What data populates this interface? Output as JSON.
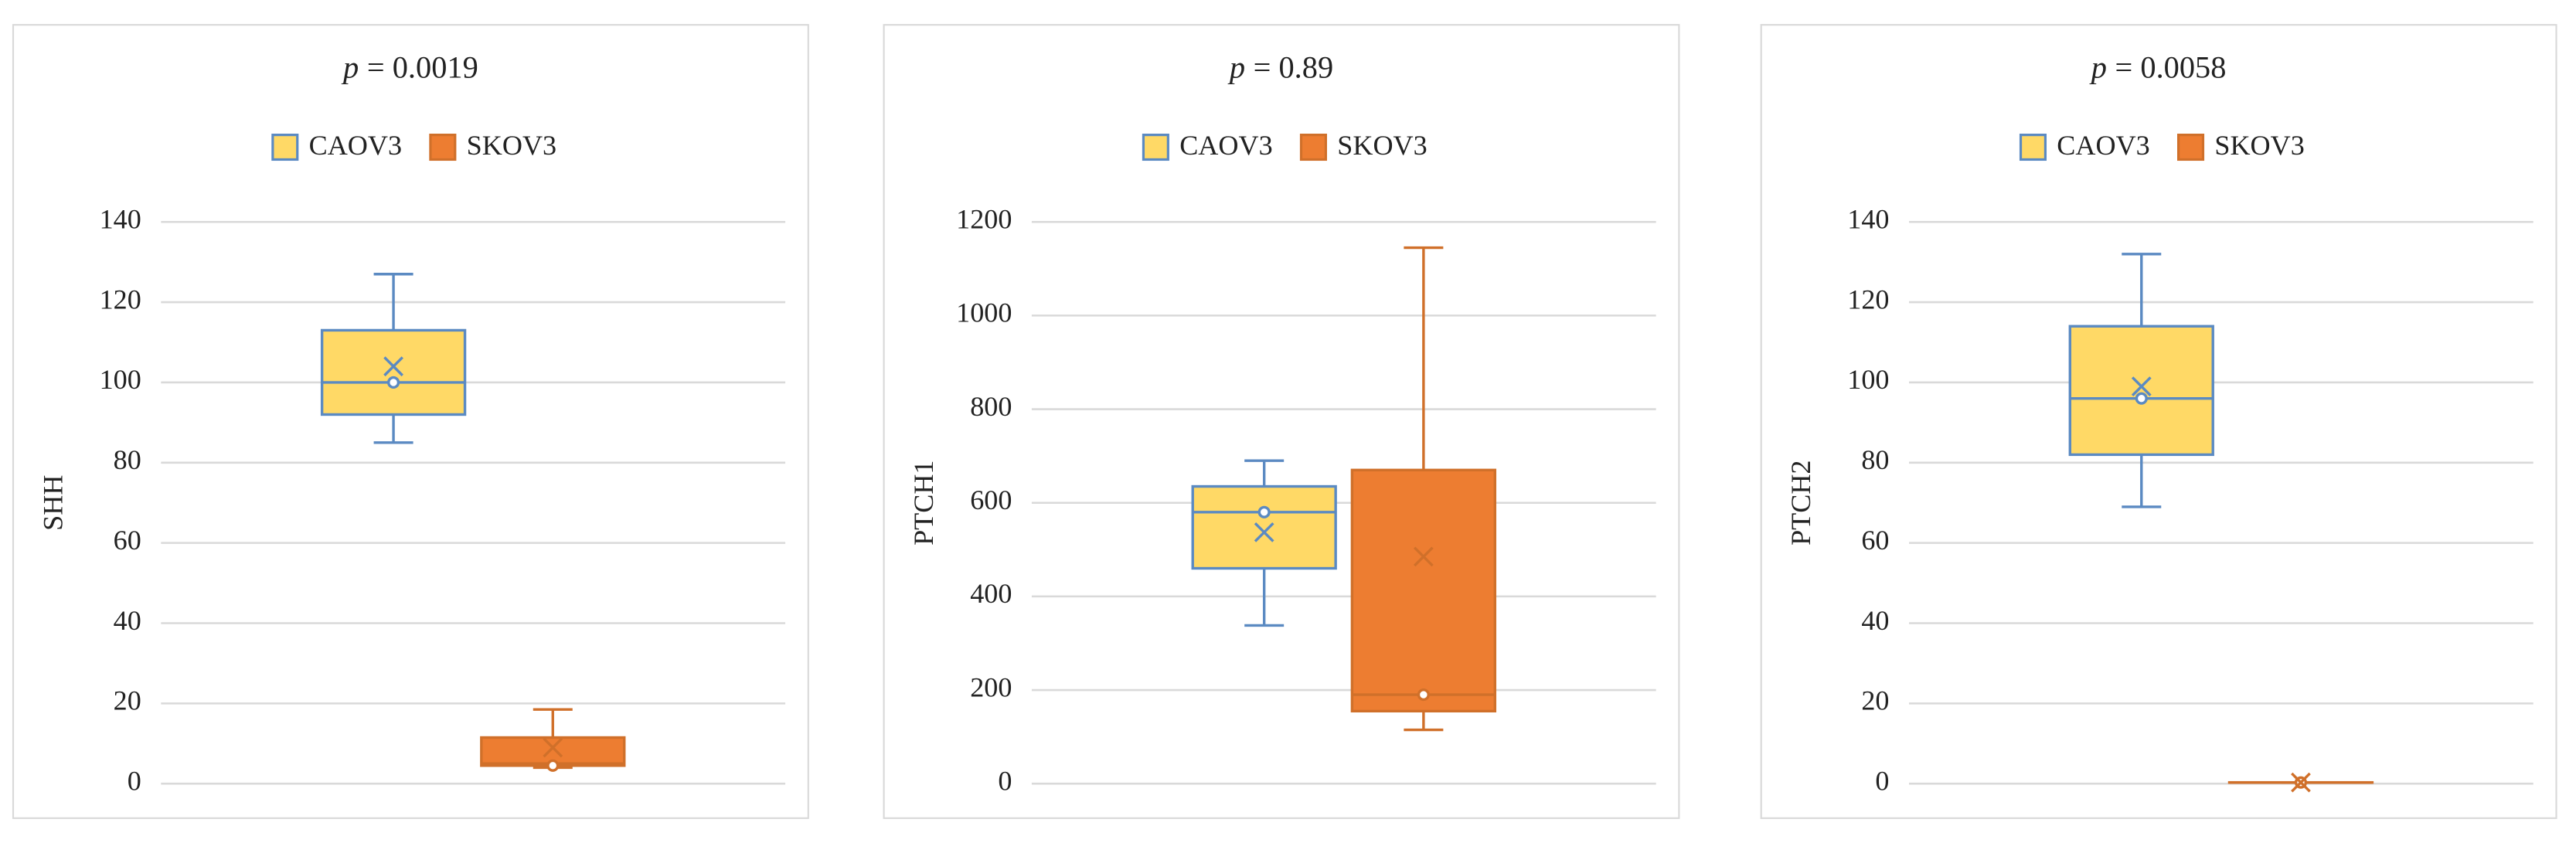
{
  "chart_data": [
    {
      "type": "box",
      "title": [
        "p",
        "= 0.0019"
      ],
      "ylabel": "SHH",
      "ylim": [
        0,
        140
      ],
      "yticks": [
        0,
        20,
        40,
        60,
        80,
        100,
        120,
        140
      ],
      "grid": true,
      "legend": "top",
      "series": [
        {
          "name": "CAOV3",
          "color": "#ffd966",
          "edge_color": "#5b8ac2",
          "min": 85,
          "q1": 92,
          "median": 100,
          "q3": 113,
          "max": 127,
          "mean": 104,
          "points": [
            100
          ]
        },
        {
          "name": "SKOV3",
          "color": "#ed7d31",
          "edge_color": "#d0702a",
          "min": 4,
          "q1": 4.5,
          "median": 5,
          "q3": 11.5,
          "max": 18.5,
          "mean": 9,
          "points": [
            4.5
          ]
        }
      ]
    },
    {
      "type": "box",
      "title": [
        "p",
        "= 0.89"
      ],
      "ylabel": "PTCH1",
      "ylim": [
        0,
        1200
      ],
      "yticks": [
        0,
        200,
        400,
        600,
        800,
        1000,
        1200
      ],
      "grid": true,
      "legend": "top",
      "series": [
        {
          "name": "CAOV3",
          "color": "#ffd966",
          "edge_color": "#5b8ac2",
          "min": 338,
          "q1": 460,
          "median": 580,
          "q3": 635,
          "max": 690,
          "mean": 537,
          "points": [
            580
          ]
        },
        {
          "name": "SKOV3",
          "color": "#ed7d31",
          "edge_color": "#d0702a",
          "min": 115,
          "q1": 155,
          "median": 190,
          "q3": 670,
          "max": 1145,
          "mean": 485,
          "points": [
            190
          ]
        }
      ]
    },
    {
      "type": "box",
      "title": [
        "p",
        "= 0.0058"
      ],
      "ylabel": "PTCH2",
      "ylim": [
        0,
        140
      ],
      "yticks": [
        0,
        20,
        40,
        60,
        80,
        100,
        120,
        140
      ],
      "grid": true,
      "legend": "top",
      "series": [
        {
          "name": "CAOV3",
          "color": "#ffd966",
          "edge_color": "#5b8ac2",
          "min": 69,
          "q1": 82,
          "median": 96,
          "q3": 114,
          "max": 132,
          "mean": 99,
          "points": [
            96
          ]
        },
        {
          "name": "SKOV3",
          "color": "#ed7d31",
          "edge_color": "#d0702a",
          "min": 0.3,
          "q1": 0.3,
          "median": 0.3,
          "q3": 0.3,
          "max": 0.3,
          "mean": 0.3,
          "points": [
            0.3
          ]
        }
      ]
    }
  ]
}
